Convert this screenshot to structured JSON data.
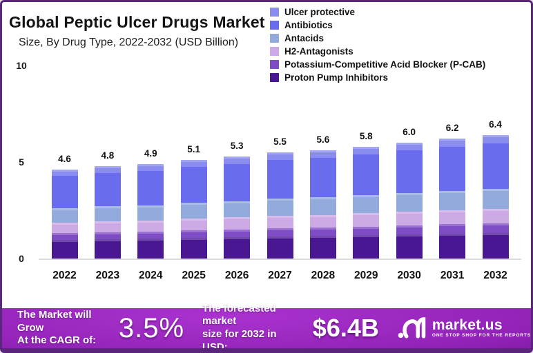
{
  "header": {
    "title": "Global Peptic Ulcer Drugs Market",
    "subtitle": "Size, By Drug Type, 2022-2032 (USD Billion)"
  },
  "chart_data": {
    "type": "bar",
    "stacked": true,
    "title": "Global Peptic Ulcer Drugs Market",
    "subtitle": "Size, By Drug Type, 2022-2032 (USD Billion)",
    "xlabel": "",
    "ylabel": "USD Billion",
    "ylim": [
      0,
      10
    ],
    "yticks": [
      0,
      5,
      10
    ],
    "grid": false,
    "legend_position": "top-right",
    "categories": [
      "2022",
      "2023",
      "2024",
      "2025",
      "2026",
      "2027",
      "2028",
      "2029",
      "2030",
      "2031",
      "2032"
    ],
    "totals": [
      4.6,
      4.8,
      4.9,
      5.1,
      5.3,
      5.5,
      5.6,
      5.8,
      6.0,
      6.2,
      6.4
    ],
    "total_labels": [
      "4.6",
      "4.8",
      "4.9",
      "5.1",
      "5.3",
      "5.5",
      "5.6",
      "5.8",
      "6.0",
      "6.2",
      "6.4"
    ],
    "series": [
      {
        "name": "Ulcer protective",
        "color": "#8a8ded",
        "values": [
          0.23,
          0.24,
          0.25,
          0.26,
          0.27,
          0.28,
          0.28,
          0.29,
          0.3,
          0.31,
          0.32
        ]
      },
      {
        "name": "Antibiotics",
        "color": "#6a6cee",
        "values": [
          1.77,
          1.85,
          1.89,
          1.96,
          2.04,
          2.12,
          2.16,
          2.23,
          2.31,
          2.39,
          2.46
        ]
      },
      {
        "name": "Antacids",
        "color": "#92aadc",
        "values": [
          0.74,
          0.77,
          0.78,
          0.82,
          0.85,
          0.88,
          0.9,
          0.93,
          0.96,
          0.99,
          1.02
        ]
      },
      {
        "name": "H2-Antagonists",
        "color": "#cda9e6",
        "values": [
          0.55,
          0.58,
          0.59,
          0.61,
          0.64,
          0.66,
          0.67,
          0.7,
          0.72,
          0.74,
          0.77
        ]
      },
      {
        "name": "Potassium-Competitive Acid Blocker (P-CAB)",
        "color": "#7e4cc5",
        "values": [
          0.35,
          0.36,
          0.37,
          0.38,
          0.4,
          0.41,
          0.42,
          0.44,
          0.45,
          0.47,
          0.48
        ]
      },
      {
        "name": "Proton Pump Inhibitors",
        "color": "#4a1792",
        "values": [
          0.96,
          1.0,
          1.02,
          1.07,
          1.1,
          1.15,
          1.17,
          1.21,
          1.26,
          1.3,
          1.34
        ]
      }
    ]
  },
  "banner": {
    "cagr_label_line1": "The Market will Grow",
    "cagr_label_line2": "At the CAGR of:",
    "cagr_value": "3.5%",
    "forecast_label_line1": "The forecasted market",
    "forecast_label_line2": "size for 2032 in USD:",
    "forecast_value": "$6.4B",
    "logo": {
      "name": "market.us",
      "tagline": "ONE STOP SHOP FOR THE REPORTS"
    }
  }
}
